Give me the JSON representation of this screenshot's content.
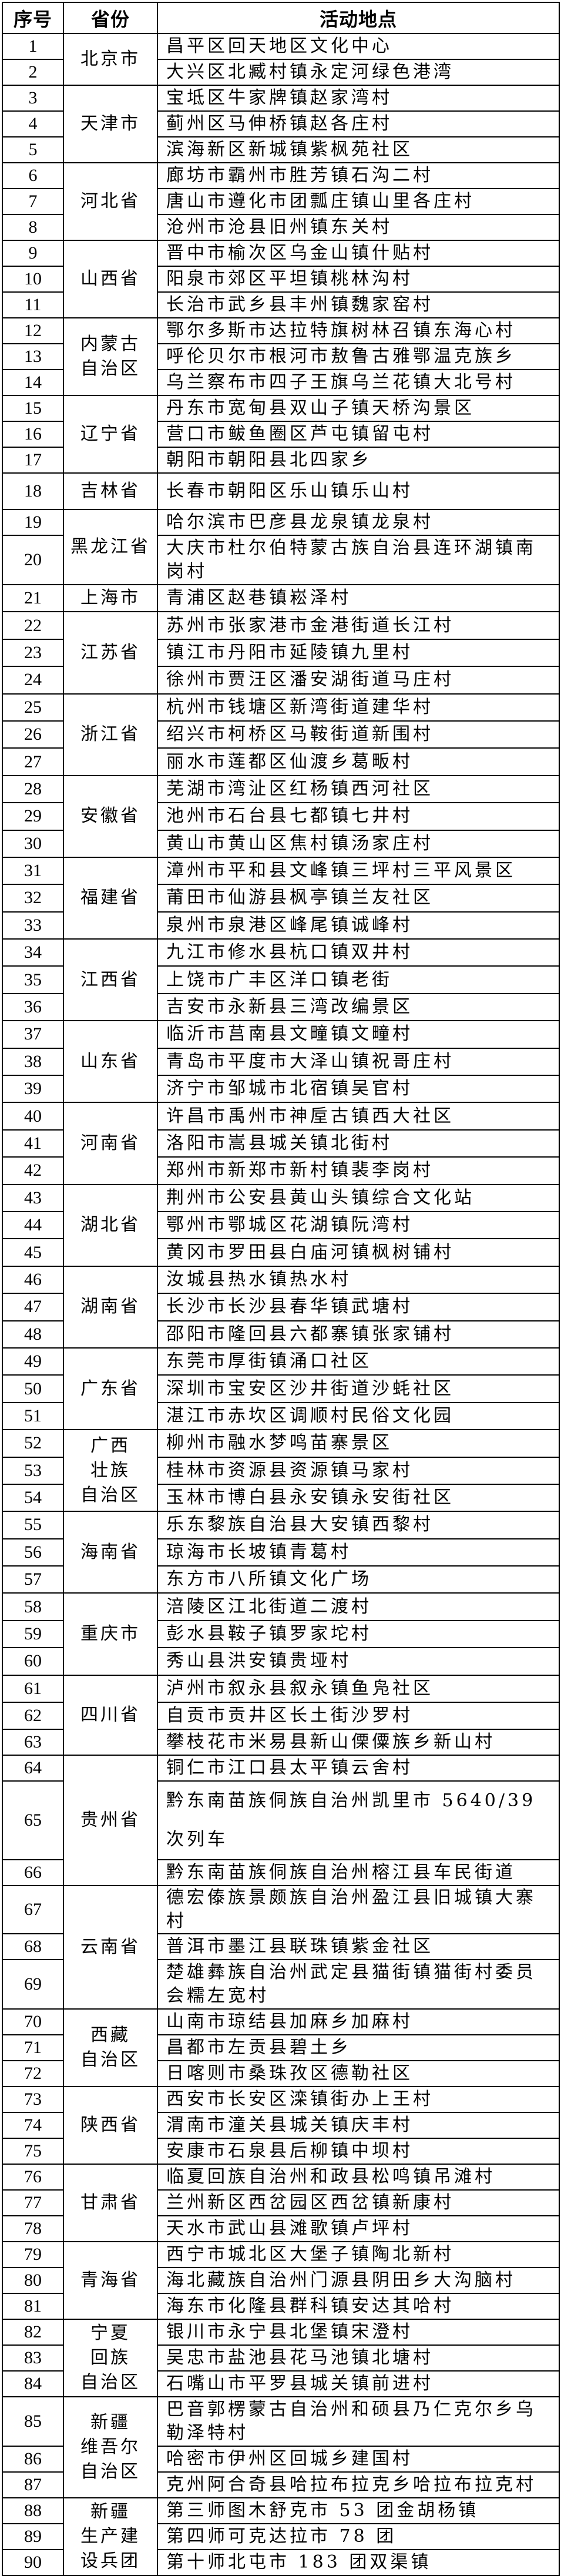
{
  "header": {
    "no": "序号",
    "province": "省份",
    "location": "活动地点"
  },
  "groups": [
    {
      "province": "北京市",
      "rows": [
        {
          "no": "1",
          "location": "昌平区回天地区文化中心"
        },
        {
          "no": "2",
          "location": "大兴区北臧村镇永定河绿色港湾"
        }
      ]
    },
    {
      "province": "天津市",
      "rows": [
        {
          "no": "3",
          "location": "宝坻区牛家牌镇赵家湾村"
        },
        {
          "no": "4",
          "location": "蓟州区马伸桥镇赵各庄村"
        },
        {
          "no": "5",
          "location": "滨海新区新城镇紫枫苑社区"
        }
      ]
    },
    {
      "province": "河北省",
      "rows": [
        {
          "no": "6",
          "location": "廊坊市霸州市胜芳镇石沟二村"
        },
        {
          "no": "7",
          "location": "唐山市遵化市团瓢庄镇山里各庄村"
        },
        {
          "no": "8",
          "location": "沧州市沧县旧州镇东关村"
        }
      ]
    },
    {
      "province": "山西省",
      "rows": [
        {
          "no": "9",
          "location": "晋中市榆次区乌金山镇什贴村"
        },
        {
          "no": "10",
          "location": "阳泉市郊区平坦镇桃林沟村"
        },
        {
          "no": "11",
          "location": "长治市武乡县丰州镇魏家窑村"
        }
      ]
    },
    {
      "province": "内蒙古\n自治区",
      "rows": [
        {
          "no": "12",
          "location": "鄂尔多斯市达拉特旗树林召镇东海心村"
        },
        {
          "no": "13",
          "location": "呼伦贝尔市根河市敖鲁古雅鄂温克族乡"
        },
        {
          "no": "14",
          "location": "乌兰察布市四子王旗乌兰花镇大北号村"
        }
      ]
    },
    {
      "province": "辽宁省",
      "rows": [
        {
          "no": "15",
          "location": "丹东市宽甸县双山子镇天桥沟景区"
        },
        {
          "no": "16",
          "location": "营口市鲅鱼圈区芦屯镇留屯村"
        },
        {
          "no": "17",
          "location": "朝阳市朝阳县北四家乡"
        }
      ]
    },
    {
      "province": "吉林省",
      "rows": [
        {
          "no": "18",
          "location": "长春市朝阳区乐山镇乐山村"
        }
      ]
    },
    {
      "province": "黑龙江省",
      "rows": [
        {
          "no": "19",
          "location": "哈尔滨市巴彦县龙泉镇龙泉村"
        },
        {
          "no": "20",
          "location": "大庆市杜尔伯特蒙古族自治县连环湖镇南岗村"
        }
      ]
    },
    {
      "province": "上海市",
      "rows": [
        {
          "no": "21",
          "location": "青浦区赵巷镇崧泽村"
        }
      ]
    },
    {
      "province": "江苏省",
      "rows": [
        {
          "no": "22",
          "location": "苏州市张家港市金港街道长江村"
        },
        {
          "no": "23",
          "location": "镇江市丹阳市延陵镇九里村"
        },
        {
          "no": "24",
          "location": "徐州市贾汪区潘安湖街道马庄村"
        }
      ]
    },
    {
      "province": "浙江省",
      "rows": [
        {
          "no": "25",
          "location": "杭州市钱塘区新湾街道建华村"
        },
        {
          "no": "26",
          "location": "绍兴市柯桥区马鞍街道新围村"
        },
        {
          "no": "27",
          "location": "丽水市莲都区仙渡乡葛畈村"
        }
      ]
    },
    {
      "province": "安徽省",
      "rows": [
        {
          "no": "28",
          "location": "芜湖市湾沚区红杨镇西河社区"
        },
        {
          "no": "29",
          "location": "池州市石台县七都镇七井村"
        },
        {
          "no": "30",
          "location": "黄山市黄山区焦村镇汤家庄村"
        }
      ]
    },
    {
      "province": "福建省",
      "rows": [
        {
          "no": "31",
          "location": "漳州市平和县文峰镇三坪村三平风景区"
        },
        {
          "no": "32",
          "location": "莆田市仙游县枫亭镇兰友社区"
        },
        {
          "no": "33",
          "location": "泉州市泉港区峰尾镇诚峰村"
        }
      ]
    },
    {
      "province": "江西省",
      "rows": [
        {
          "no": "34",
          "location": "九江市修水县杭口镇双井村"
        },
        {
          "no": "35",
          "location": "上饶市广丰区洋口镇老街"
        },
        {
          "no": "36",
          "location": "吉安市永新县三湾改编景区"
        }
      ]
    },
    {
      "province": "山东省",
      "rows": [
        {
          "no": "37",
          "location": "临沂市莒南县文疃镇文疃村"
        },
        {
          "no": "38",
          "location": "青岛市平度市大泽山镇祝哥庄村"
        },
        {
          "no": "39",
          "location": "济宁市邹城市北宿镇吴官村"
        }
      ]
    },
    {
      "province": "河南省",
      "rows": [
        {
          "no": "40",
          "location": "许昌市禹州市神垕古镇西大社区"
        },
        {
          "no": "41",
          "location": "洛阳市嵩县城关镇北街村"
        },
        {
          "no": "42",
          "location": "郑州市新郑市新村镇裴李岗村"
        }
      ]
    },
    {
      "province": "湖北省",
      "rows": [
        {
          "no": "43",
          "location": "荆州市公安县黄山头镇综合文化站"
        },
        {
          "no": "44",
          "location": "鄂州市鄂城区花湖镇阮湾村"
        },
        {
          "no": "45",
          "location": "黄冈市罗田县白庙河镇枫树铺村"
        }
      ]
    },
    {
      "province": "湖南省",
      "rows": [
        {
          "no": "46",
          "location": "汝城县热水镇热水村"
        },
        {
          "no": "47",
          "location": "长沙市长沙县春华镇武塘村"
        },
        {
          "no": "48",
          "location": "邵阳市隆回县六都寨镇张家铺村"
        }
      ]
    },
    {
      "province": "广东省",
      "rows": [
        {
          "no": "49",
          "location": "东莞市厚街镇涌口社区"
        },
        {
          "no": "50",
          "location": "深圳市宝安区沙井街道沙蚝社区"
        },
        {
          "no": "51",
          "location": "湛江市赤坎区调顺村民俗文化园"
        }
      ]
    },
    {
      "province": "广西\n壮族\n自治区",
      "rows": [
        {
          "no": "52",
          "location": "柳州市融水梦鸣苗寨景区"
        },
        {
          "no": "53",
          "location": "桂林市资源县资源镇马家村"
        },
        {
          "no": "54",
          "location": "玉林市博白县永安镇永安街社区"
        }
      ]
    },
    {
      "province": "海南省",
      "rows": [
        {
          "no": "55",
          "location": "乐东黎族自治县大安镇西黎村"
        },
        {
          "no": "56",
          "location": "琼海市长坡镇青葛村"
        },
        {
          "no": "57",
          "location": "东方市八所镇文化广场"
        }
      ]
    },
    {
      "province": "重庆市",
      "rows": [
        {
          "no": "58",
          "location": "涪陵区江北街道二渡村"
        },
        {
          "no": "59",
          "location": "彭水县鞍子镇罗家坨村"
        },
        {
          "no": "60",
          "location": "秀山县洪安镇贵垭村"
        }
      ]
    },
    {
      "province": "四川省",
      "rows": [
        {
          "no": "61",
          "location": "泸州市叙永县叙永镇鱼凫社区"
        },
        {
          "no": "62",
          "location": "自贡市贡井区长土街沙罗村"
        },
        {
          "no": "63",
          "location": "攀枝花市米易县新山傈僳族乡新山村"
        }
      ]
    },
    {
      "province": "贵州省",
      "rows": [
        {
          "no": "64",
          "location": "铜仁市江口县太平镇云舍村"
        },
        {
          "no": "65",
          "location": "黔东南苗族侗族自治州凯里市 5640/39 次列车"
        },
        {
          "no": "66",
          "location": "黔东南苗族侗族自治州榕江县车民街道"
        }
      ]
    },
    {
      "province": "云南省",
      "rows": [
        {
          "no": "67",
          "location": "德宏傣族景颇族自治州盈江县旧城镇大寨村"
        },
        {
          "no": "68",
          "location": "普洱市墨江县联珠镇紫金社区"
        },
        {
          "no": "69",
          "location": "楚雄彝族自治州武定县猫街镇猫街村委员会糯左宽村"
        }
      ]
    },
    {
      "province": "西藏\n自治区",
      "rows": [
        {
          "no": "70",
          "location": "山南市琼结县加麻乡加麻村"
        },
        {
          "no": "71",
          "location": "昌都市左贡县碧土乡"
        },
        {
          "no": "72",
          "location": "日喀则市桑珠孜区德勒社区"
        }
      ]
    },
    {
      "province": "陕西省",
      "rows": [
        {
          "no": "73",
          "location": "西安市长安区滦镇街办上王村"
        },
        {
          "no": "74",
          "location": "渭南市潼关县城关镇庆丰村"
        },
        {
          "no": "75",
          "location": "安康市石泉县后柳镇中坝村"
        }
      ]
    },
    {
      "province": "甘肃省",
      "rows": [
        {
          "no": "76",
          "location": "临夏回族自治州和政县松鸣镇吊滩村"
        },
        {
          "no": "77",
          "location": "兰州新区西岔园区西岔镇新康村"
        },
        {
          "no": "78",
          "location": "天水市武山县滩歌镇卢坪村"
        }
      ]
    },
    {
      "province": "青海省",
      "rows": [
        {
          "no": "79",
          "location": "西宁市城北区大堡子镇陶北新村"
        },
        {
          "no": "80",
          "location": "海北藏族自治州门源县阴田乡大沟脑村"
        },
        {
          "no": "81",
          "location": "海东市化隆县群科镇安达其哈村"
        }
      ]
    },
    {
      "province": "宁夏\n回族\n自治区",
      "rows": [
        {
          "no": "82",
          "location": "银川市永宁县北堡镇宋澄村"
        },
        {
          "no": "83",
          "location": "吴忠市盐池县花马池镇北塘村"
        },
        {
          "no": "84",
          "location": "石嘴山市平罗县城关镇前进村"
        }
      ]
    },
    {
      "province": "新疆\n维吾尔\n自治区",
      "rows": [
        {
          "no": "85",
          "location": "巴音郭楞蒙古自治州和硕县乃仁克尔乡乌勒泽特村"
        },
        {
          "no": "86",
          "location": "哈密市伊州区回城乡建国村"
        },
        {
          "no": "87",
          "location": "克州阿合奇县哈拉布拉克乡哈拉布拉克村"
        }
      ]
    },
    {
      "province": "新疆\n生产建\n设兵团",
      "rows": [
        {
          "no": "88",
          "location": "第三师图木舒克市 53 团金胡杨镇"
        },
        {
          "no": "89",
          "location": "第四师可克达拉市 78 团"
        },
        {
          "no": "90",
          "location": "第十师北屯市 183 团双渠镇"
        }
      ]
    }
  ]
}
